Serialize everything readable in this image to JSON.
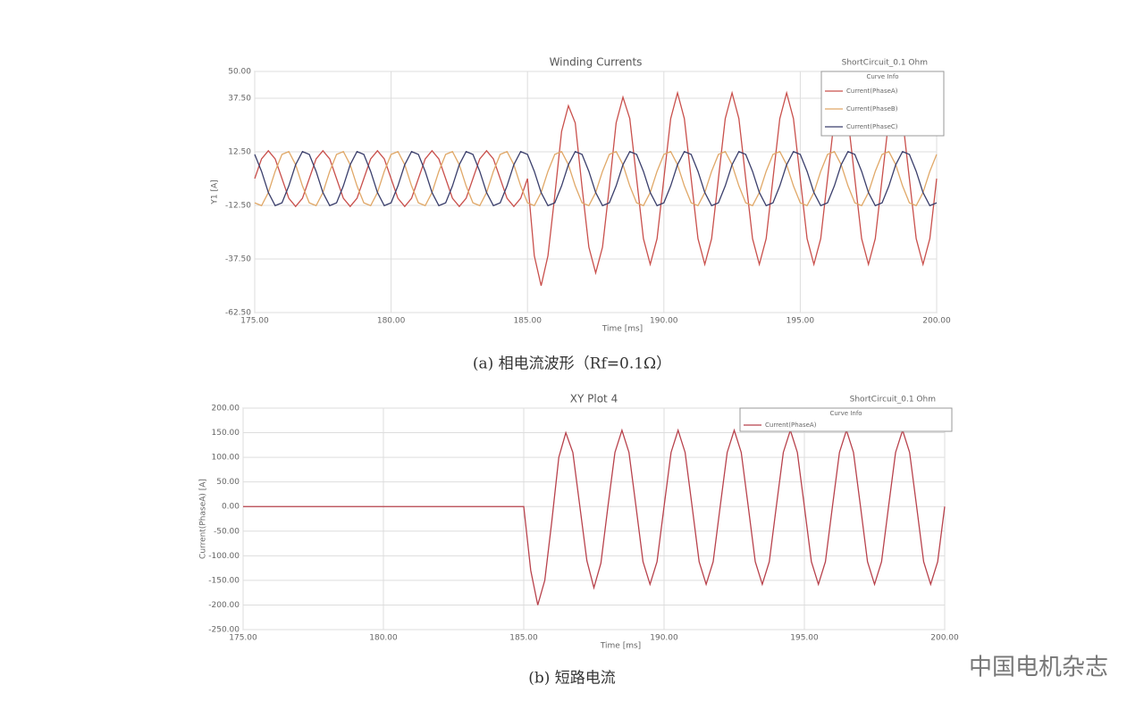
{
  "chart_data": [
    {
      "type": "line",
      "title": "Winding Currents",
      "subtitle": "ShortCircuit_0.1 Ohm",
      "legend_title": "Curve Info",
      "x_label": "Time [ms]",
      "y_label": "Y1 [A]",
      "caption": "(a)  相电流波形（Rf=0.1Ω）",
      "xlim": [
        175,
        200
      ],
      "xticks": [
        {
          "value": 175,
          "label": "175.00"
        },
        {
          "value": 180,
          "label": "180.00"
        },
        {
          "value": 185,
          "label": "185.00"
        },
        {
          "value": 190,
          "label": "190.00"
        },
        {
          "value": 195,
          "label": "195.00"
        },
        {
          "value": 200,
          "label": "200.00"
        }
      ],
      "ylim": [
        -62.5,
        50
      ],
      "yticks": [
        {
          "value": 50,
          "label": "50.00"
        },
        {
          "value": 37.5,
          "label": "37.50"
        },
        {
          "value": 12.5,
          "label": "12.50"
        },
        {
          "value": -12.5,
          "label": "-12.50"
        },
        {
          "value": -37.5,
          "label": "-37.50"
        },
        {
          "value": -62.5,
          "label": "-62.50"
        }
      ],
      "grid": true,
      "legend": "upper right",
      "x": [
        175,
        175.25,
        175.5,
        175.75,
        176,
        176.25,
        176.5,
        176.75,
        177,
        177.25,
        177.5,
        177.75,
        178,
        178.25,
        178.5,
        178.75,
        179,
        179.25,
        179.5,
        179.75,
        180,
        180.25,
        180.5,
        180.75,
        181,
        181.25,
        181.5,
        181.75,
        182,
        182.25,
        182.5,
        182.75,
        183,
        183.25,
        183.5,
        183.75,
        184,
        184.25,
        184.5,
        184.75,
        185,
        185.25,
        185.5,
        185.75,
        186,
        186.25,
        186.5,
        186.75,
        187,
        187.25,
        187.5,
        187.75,
        188,
        188.25,
        188.5,
        188.75,
        189,
        189.25,
        189.5,
        189.75,
        190,
        190.25,
        190.5,
        190.75,
        191,
        191.25,
        191.5,
        191.75,
        192,
        192.25,
        192.5,
        192.75,
        193,
        193.25,
        193.5,
        193.75,
        194,
        194.25,
        194.5,
        194.75,
        195,
        195.25,
        195.5,
        195.75,
        196,
        196.25,
        196.5,
        196.75,
        197,
        197.25,
        197.5,
        197.75,
        198,
        198.25,
        198.5,
        198.75,
        199,
        199.25,
        199.5,
        199.75,
        200
      ],
      "series": [
        {
          "name": "Current(PhaseA)",
          "color": "#c9504c",
          "values": [
            0,
            9.2,
            13,
            9.2,
            0,
            -9.2,
            -13,
            -9.2,
            0,
            9.2,
            13,
            9.2,
            0,
            -9.2,
            -13,
            -9.2,
            0,
            9.2,
            13,
            9.2,
            0,
            -9.2,
            -13,
            -9.2,
            0,
            9.2,
            13,
            9.2,
            0,
            -9.2,
            -13,
            -9.2,
            0,
            9.2,
            13,
            9.2,
            0,
            -9.2,
            -13,
            -9.2,
            0,
            -36,
            -50,
            -36,
            -8,
            22,
            34,
            26,
            -4,
            -32,
            -44,
            -32,
            -4,
            26,
            38,
            28,
            0,
            -28,
            -40,
            -28,
            0,
            28,
            40,
            28,
            0,
            -28,
            -40,
            -28,
            0,
            28,
            40,
            28,
            0,
            -28,
            -40,
            -28,
            0,
            28,
            40,
            28,
            0,
            -28,
            -40,
            -28,
            0,
            28,
            40,
            28,
            0,
            -28,
            -40,
            -28,
            0,
            28,
            40,
            28,
            0,
            -28,
            -40,
            -28,
            0
          ]
        },
        {
          "name": "Current(PhaseB)",
          "color": "#e0a868",
          "values": [
            -11.3,
            -12.6,
            -6.5,
            3.4,
            11.3,
            12.6,
            6.5,
            -3.4,
            -11.3,
            -12.6,
            -6.5,
            3.4,
            11.3,
            12.6,
            6.5,
            -3.4,
            -11.3,
            -12.6,
            -6.5,
            3.4,
            11.3,
            12.6,
            6.5,
            -3.4,
            -11.3,
            -12.6,
            -6.5,
            3.4,
            11.3,
            12.6,
            6.5,
            -3.4,
            -11.3,
            -12.6,
            -6.5,
            3.4,
            11.3,
            12.6,
            6.5,
            -3.4,
            -11.3,
            -12.6,
            -6.5,
            3.4,
            11.3,
            12.6,
            6.5,
            -3.4,
            -11.3,
            -12.6,
            -6.5,
            3.4,
            11.3,
            12.6,
            6.5,
            -3.4,
            -11.3,
            -12.6,
            -6.5,
            3.4,
            11.3,
            12.6,
            6.5,
            -3.4,
            -11.3,
            -12.6,
            -6.5,
            3.4,
            11.3,
            12.6,
            6.5,
            -3.4,
            -11.3,
            -12.6,
            -6.5,
            3.4,
            11.3,
            12.6,
            6.5,
            -3.4,
            -11.3,
            -12.6,
            -6.5,
            3.4,
            11.3,
            12.6,
            6.5,
            -3.4,
            -11.3,
            -12.6,
            -6.5,
            3.4,
            11.3,
            12.6,
            6.5,
            -3.4,
            -11.3,
            -12.6,
            -6.5,
            3.4,
            11.3
          ]
        },
        {
          "name": "Current(PhaseC)",
          "color": "#3b3f6c",
          "values": [
            11.3,
            3.4,
            -6.5,
            -12.6,
            -11.3,
            -3.4,
            6.5,
            12.6,
            11.3,
            3.4,
            -6.5,
            -12.6,
            -11.3,
            -3.4,
            6.5,
            12.6,
            11.3,
            3.4,
            -6.5,
            -12.6,
            -11.3,
            -3.4,
            6.5,
            12.6,
            11.3,
            3.4,
            -6.5,
            -12.6,
            -11.3,
            -3.4,
            6.5,
            12.6,
            11.3,
            3.4,
            -6.5,
            -12.6,
            -11.3,
            -3.4,
            6.5,
            12.6,
            11.3,
            3.4,
            -6.5,
            -12.6,
            -11.3,
            -3.4,
            6.5,
            12.6,
            11.3,
            3.4,
            -6.5,
            -12.6,
            -11.3,
            -3.4,
            6.5,
            12.6,
            11.3,
            3.4,
            -6.5,
            -12.6,
            -11.3,
            -3.4,
            6.5,
            12.6,
            11.3,
            3.4,
            -6.5,
            -12.6,
            -11.3,
            -3.4,
            6.5,
            12.6,
            11.3,
            3.4,
            -6.5,
            -12.6,
            -11.3,
            -3.4,
            6.5,
            12.6,
            11.3,
            3.4,
            -6.5,
            -12.6,
            -11.3,
            -3.4,
            6.5,
            12.6,
            11.3,
            3.4,
            -6.5,
            -12.6,
            -11.3,
            -3.4,
            6.5,
            12.6,
            11.3,
            3.4,
            -6.5,
            -12.6,
            -11.3
          ]
        }
      ]
    },
    {
      "type": "line",
      "title": "XY Plot 4",
      "subtitle": "ShortCircuit_0.1 Ohm",
      "legend_title": "Curve Info",
      "x_label": "Time [ms]",
      "y_label": "Current(PhaseA) [A]",
      "caption": "(b)  短路电流",
      "xlim": [
        175,
        200
      ],
      "xticks": [
        {
          "value": 175,
          "label": "175.00"
        },
        {
          "value": 180,
          "label": "180.00"
        },
        {
          "value": 185,
          "label": "185.00"
        },
        {
          "value": 190,
          "label": "190.00"
        },
        {
          "value": 195,
          "label": "195.00"
        },
        {
          "value": 200,
          "label": "200.00"
        }
      ],
      "ylim": [
        -250,
        200
      ],
      "yticks": [
        {
          "value": 200,
          "label": "200.00"
        },
        {
          "value": 150,
          "label": "150.00"
        },
        {
          "value": 100,
          "label": "100.00"
        },
        {
          "value": 50,
          "label": "50.00"
        },
        {
          "value": 0,
          "label": "0.00"
        },
        {
          "value": -50,
          "label": "-50.00"
        },
        {
          "value": -100,
          "label": "-100.00"
        },
        {
          "value": -150,
          "label": "-150.00"
        },
        {
          "value": -200,
          "label": "-200.00"
        },
        {
          "value": -250,
          "label": "-250.00"
        }
      ],
      "grid": true,
      "legend": "upper right",
      "x": [
        175,
        175.25,
        175.5,
        175.75,
        176,
        176.25,
        176.5,
        176.75,
        177,
        177.25,
        177.5,
        177.75,
        178,
        178.25,
        178.5,
        178.75,
        179,
        179.25,
        179.5,
        179.75,
        180,
        180.25,
        180.5,
        180.75,
        181,
        181.25,
        181.5,
        181.75,
        182,
        182.25,
        182.5,
        182.75,
        183,
        183.25,
        183.5,
        183.75,
        184,
        184.25,
        184.5,
        184.75,
        185,
        185.25,
        185.5,
        185.75,
        186,
        186.25,
        186.5,
        186.75,
        187,
        187.25,
        187.5,
        187.75,
        188,
        188.25,
        188.5,
        188.75,
        189,
        189.25,
        189.5,
        189.75,
        190,
        190.25,
        190.5,
        190.75,
        191,
        191.25,
        191.5,
        191.75,
        192,
        192.25,
        192.5,
        192.75,
        193,
        193.25,
        193.5,
        193.75,
        194,
        194.25,
        194.5,
        194.75,
        195,
        195.25,
        195.5,
        195.75,
        196,
        196.25,
        196.5,
        196.75,
        197,
        197.25,
        197.5,
        197.75,
        198,
        198.25,
        198.5,
        198.75,
        199,
        199.25,
        199.5,
        199.75,
        200
      ],
      "series": [
        {
          "name": "Current(PhaseA)",
          "color": "#b8424c",
          "values": [
            0,
            0,
            0,
            0,
            0,
            0,
            0,
            0,
            0,
            0,
            0,
            0,
            0,
            0,
            0,
            0,
            0,
            0,
            0,
            0,
            0,
            0,
            0,
            0,
            0,
            0,
            0,
            0,
            0,
            0,
            0,
            0,
            0,
            0,
            0,
            0,
            0,
            0,
            0,
            0,
            0,
            -130,
            -200,
            -150,
            -30,
            100,
            150,
            110,
            0,
            -110,
            -165,
            -115,
            0,
            110,
            155,
            110,
            0,
            -112,
            -158,
            -112,
            0,
            110,
            155,
            110,
            0,
            -112,
            -158,
            -112,
            0,
            110,
            155,
            110,
            0,
            -112,
            -158,
            -112,
            0,
            110,
            155,
            110,
            0,
            -112,
            -158,
            -112,
            0,
            110,
            155,
            110,
            0,
            -112,
            -158,
            -112,
            0,
            110,
            155,
            110,
            0,
            -112,
            -158,
            -112,
            0
          ]
        }
      ]
    }
  ],
  "watermark": "中国电机杂志"
}
